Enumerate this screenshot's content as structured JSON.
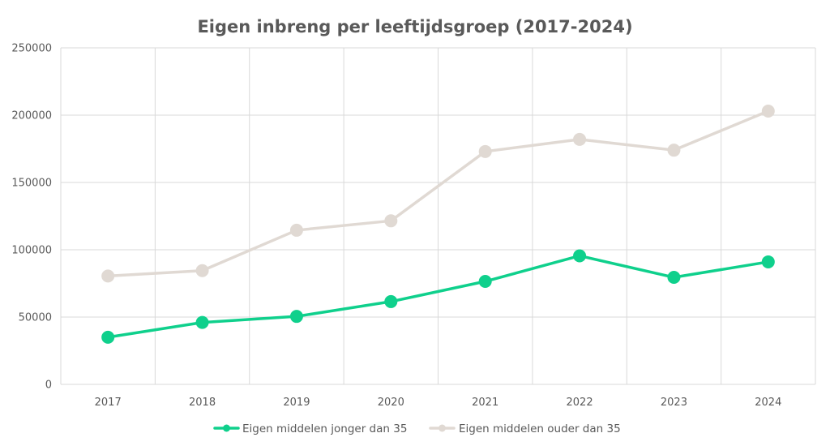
{
  "chart_data": {
    "type": "line",
    "title": "Eigen inbreng per leeftijdsgroep (2017-2024)",
    "xlabel": "",
    "ylabel": "",
    "categories": [
      "2017",
      "2018",
      "2019",
      "2020",
      "2021",
      "2022",
      "2023",
      "2024"
    ],
    "y_ticks": [
      "0",
      "50000",
      "100000",
      "150000",
      "200000",
      "250000"
    ],
    "ylim": [
      0,
      250000
    ],
    "grid": true,
    "legend_position": "bottom",
    "series": [
      {
        "name": "Eigen middelen jonger dan 35",
        "color": "#0fd08c",
        "values": [
          35000,
          46000,
          50500,
          61500,
          76500,
          95500,
          79500,
          91000
        ]
      },
      {
        "name": "Eigen middelen ouder dan 35",
        "color": "#e0d9d3",
        "values": [
          80500,
          84500,
          114500,
          121500,
          173000,
          182000,
          174000,
          203000
        ]
      }
    ]
  }
}
